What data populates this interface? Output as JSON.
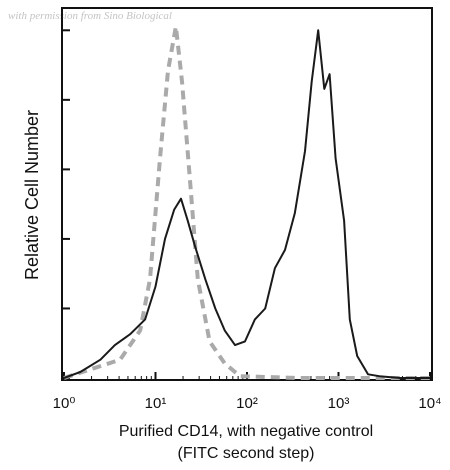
{
  "chart_data": {
    "type": "line",
    "watermark": "with permission from Sino Biological",
    "xlabel": [
      "Purified CD14, with negative control",
      "(FITC second step)"
    ],
    "ylabel": "Relative Cell Number",
    "xscale": "log",
    "xlim": [
      1,
      10000
    ],
    "xticks": [
      {
        "value": 1,
        "label": "10⁰"
      },
      {
        "value": 10,
        "label": "10¹"
      },
      {
        "value": 100,
        "label": "10²"
      },
      {
        "value": 1000,
        "label": "10³"
      },
      {
        "value": 10000,
        "label": "10⁴"
      }
    ],
    "ylim": [
      0,
      100
    ],
    "yticks": [
      0,
      19,
      38,
      57,
      76,
      95
    ],
    "series": [
      {
        "color": "#aaaaaa",
        "dashed": true,
        "x": [
          1,
          4.1,
          6.8,
          8.7,
          11.2,
          13.7,
          16.7,
          19.5,
          23.8,
          29,
          39,
          57,
          84,
          380,
          10000
        ],
        "values": [
          0,
          5,
          13,
          27,
          60,
          84,
          96,
          81,
          54,
          27,
          10,
          4,
          0.5,
          0,
          0
        ]
      },
      {
        "color": "#1a1a1a",
        "dashed": false,
        "x": [
          1,
          1.5,
          2.5,
          3.6,
          5.3,
          7.7,
          10,
          12.7,
          16,
          19,
          22.5,
          27,
          35,
          45,
          57,
          74,
          95,
          122,
          158,
          202,
          260,
          333,
          430,
          510,
          600,
          700,
          800,
          930,
          1150,
          1330,
          1600,
          2100,
          2800,
          4700,
          10000
        ],
        "values": [
          0,
          1.6,
          5,
          9,
          12,
          16,
          25,
          38,
          46,
          49,
          43,
          36,
          27,
          19,
          13,
          9,
          10,
          16,
          19,
          30,
          35,
          45,
          62,
          81,
          95,
          79,
          83,
          60,
          43,
          16,
          6,
          1,
          0.5,
          0,
          0
        ]
      }
    ]
  }
}
